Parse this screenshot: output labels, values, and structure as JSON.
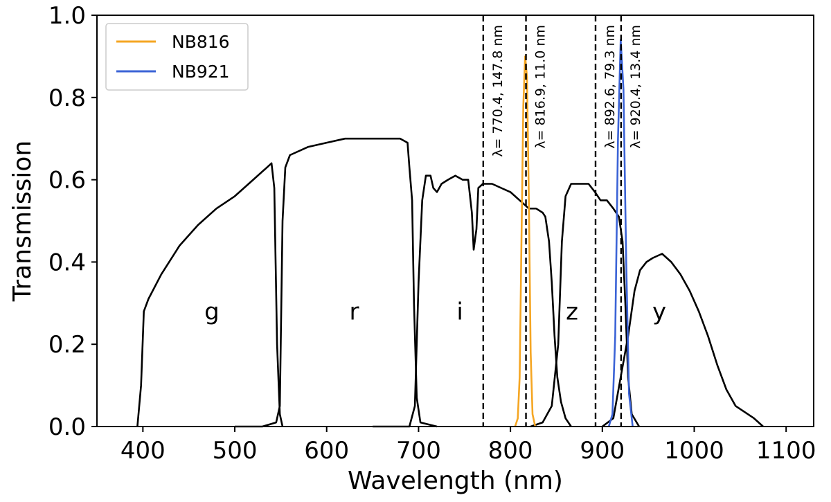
{
  "chart_data": {
    "type": "line",
    "xlabel": "Wavelength (nm)",
    "ylabel": "Transmission",
    "xlim": [
      350,
      1130
    ],
    "ylim": [
      0.0,
      1.0
    ],
    "xticks": [
      400,
      500,
      600,
      700,
      800,
      900,
      1000,
      1100
    ],
    "yticks": [
      "0.0",
      "0.2",
      "0.4",
      "0.6",
      "0.8",
      "1.0"
    ],
    "grid": false,
    "legend_position": "top-left",
    "series": [
      {
        "id": "g",
        "color": "#000000",
        "points": [
          [
            394,
            0.0
          ],
          [
            398,
            0.1
          ],
          [
            401,
            0.28
          ],
          [
            406,
            0.31
          ],
          [
            420,
            0.37
          ],
          [
            440,
            0.44
          ],
          [
            460,
            0.49
          ],
          [
            480,
            0.53
          ],
          [
            500,
            0.56
          ],
          [
            520,
            0.6
          ],
          [
            535,
            0.63
          ],
          [
            540,
            0.64
          ],
          [
            543,
            0.58
          ],
          [
            546,
            0.2
          ],
          [
            549,
            0.03
          ],
          [
            552,
            0.0
          ]
        ]
      },
      {
        "id": "r",
        "color": "#000000",
        "points": [
          [
            500,
            0.0
          ],
          [
            530,
            0.0
          ],
          [
            545,
            0.01
          ],
          [
            549,
            0.05
          ],
          [
            552,
            0.5
          ],
          [
            555,
            0.63
          ],
          [
            560,
            0.66
          ],
          [
            580,
            0.68
          ],
          [
            600,
            0.69
          ],
          [
            620,
            0.7
          ],
          [
            640,
            0.7
          ],
          [
            660,
            0.7
          ],
          [
            680,
            0.7
          ],
          [
            688,
            0.69
          ],
          [
            690,
            0.63
          ],
          [
            693,
            0.55
          ],
          [
            695,
            0.3
          ],
          [
            698,
            0.07
          ],
          [
            702,
            0.01
          ],
          [
            720,
            0.0
          ]
        ]
      },
      {
        "id": "i",
        "color": "#000000",
        "points": [
          [
            650,
            0.0
          ],
          [
            690,
            0.0
          ],
          [
            696,
            0.05
          ],
          [
            700,
            0.35
          ],
          [
            704,
            0.55
          ],
          [
            708,
            0.61
          ],
          [
            713,
            0.61
          ],
          [
            716,
            0.58
          ],
          [
            720,
            0.57
          ],
          [
            725,
            0.59
          ],
          [
            732,
            0.6
          ],
          [
            740,
            0.61
          ],
          [
            748,
            0.6
          ],
          [
            754,
            0.6
          ],
          [
            758,
            0.52
          ],
          [
            760,
            0.43
          ],
          [
            763,
            0.48
          ],
          [
            765,
            0.58
          ],
          [
            770,
            0.59
          ],
          [
            780,
            0.59
          ],
          [
            790,
            0.58
          ],
          [
            800,
            0.57
          ],
          [
            810,
            0.55
          ],
          [
            815,
            0.54
          ],
          [
            820,
            0.53
          ],
          [
            828,
            0.53
          ],
          [
            835,
            0.52
          ],
          [
            838,
            0.51
          ],
          [
            842,
            0.45
          ],
          [
            845,
            0.35
          ],
          [
            848,
            0.22
          ],
          [
            851,
            0.12
          ],
          [
            855,
            0.06
          ],
          [
            860,
            0.02
          ],
          [
            866,
            0.0
          ]
        ]
      },
      {
        "id": "z",
        "color": "#000000",
        "points": [
          [
            822,
            0.0
          ],
          [
            835,
            0.01
          ],
          [
            845,
            0.05
          ],
          [
            852,
            0.2
          ],
          [
            856,
            0.45
          ],
          [
            860,
            0.56
          ],
          [
            866,
            0.59
          ],
          [
            875,
            0.59
          ],
          [
            885,
            0.59
          ],
          [
            892,
            0.57
          ],
          [
            898,
            0.55
          ],
          [
            905,
            0.55
          ],
          [
            912,
            0.53
          ],
          [
            918,
            0.51
          ],
          [
            922,
            0.45
          ],
          [
            925,
            0.3
          ],
          [
            928,
            0.12
          ],
          [
            932,
            0.03
          ],
          [
            940,
            0.0
          ]
        ]
      },
      {
        "id": "y",
        "color": "#000000",
        "points": [
          [
            900,
            0.0
          ],
          [
            912,
            0.02
          ],
          [
            920,
            0.12
          ],
          [
            928,
            0.22
          ],
          [
            935,
            0.33
          ],
          [
            941,
            0.38
          ],
          [
            948,
            0.4
          ],
          [
            955,
            0.41
          ],
          [
            965,
            0.42
          ],
          [
            975,
            0.4
          ],
          [
            985,
            0.37
          ],
          [
            995,
            0.33
          ],
          [
            1005,
            0.28
          ],
          [
            1015,
            0.22
          ],
          [
            1025,
            0.15
          ],
          [
            1035,
            0.09
          ],
          [
            1045,
            0.05
          ],
          [
            1055,
            0.035
          ],
          [
            1065,
            0.02
          ],
          [
            1075,
            0.0
          ]
        ]
      },
      {
        "id": "NB816",
        "name": "NB816",
        "color": "#f5a623",
        "points": [
          [
            805,
            0.0
          ],
          [
            808,
            0.02
          ],
          [
            810,
            0.12
          ],
          [
            812,
            0.45
          ],
          [
            814,
            0.78
          ],
          [
            816,
            0.9
          ],
          [
            818,
            0.85
          ],
          [
            820,
            0.55
          ],
          [
            822,
            0.18
          ],
          [
            824,
            0.03
          ],
          [
            827,
            0.0
          ]
        ]
      },
      {
        "id": "NB921",
        "name": "NB921",
        "color": "#3b63d6",
        "points": [
          [
            907,
            0.0
          ],
          [
            911,
            0.03
          ],
          [
            914,
            0.22
          ],
          [
            917,
            0.7
          ],
          [
            920,
            0.94
          ],
          [
            923,
            0.82
          ],
          [
            926,
            0.4
          ],
          [
            929,
            0.08
          ],
          [
            933,
            0.0
          ]
        ]
      }
    ],
    "vlines": [
      {
        "x": 770.4,
        "label": "λ= 770.4, 147.8 nm"
      },
      {
        "x": 816.9,
        "label": "λ= 816.9, 11.0 nm"
      },
      {
        "x": 892.6,
        "label": "λ= 892.6, 79.3 nm"
      },
      {
        "x": 920.4,
        "label": "λ= 920.4, 13.4 nm"
      }
    ],
    "band_labels": [
      {
        "text": "g",
        "x": 475,
        "y": 0.26
      },
      {
        "text": "r",
        "x": 630,
        "y": 0.26
      },
      {
        "text": "i",
        "x": 745,
        "y": 0.26
      },
      {
        "text": "z",
        "x": 867,
        "y": 0.26
      },
      {
        "text": "y",
        "x": 962,
        "y": 0.26
      }
    ],
    "legend": [
      {
        "label": "NB816",
        "color": "#f5a623"
      },
      {
        "label": "NB921",
        "color": "#3b63d6"
      }
    ]
  }
}
